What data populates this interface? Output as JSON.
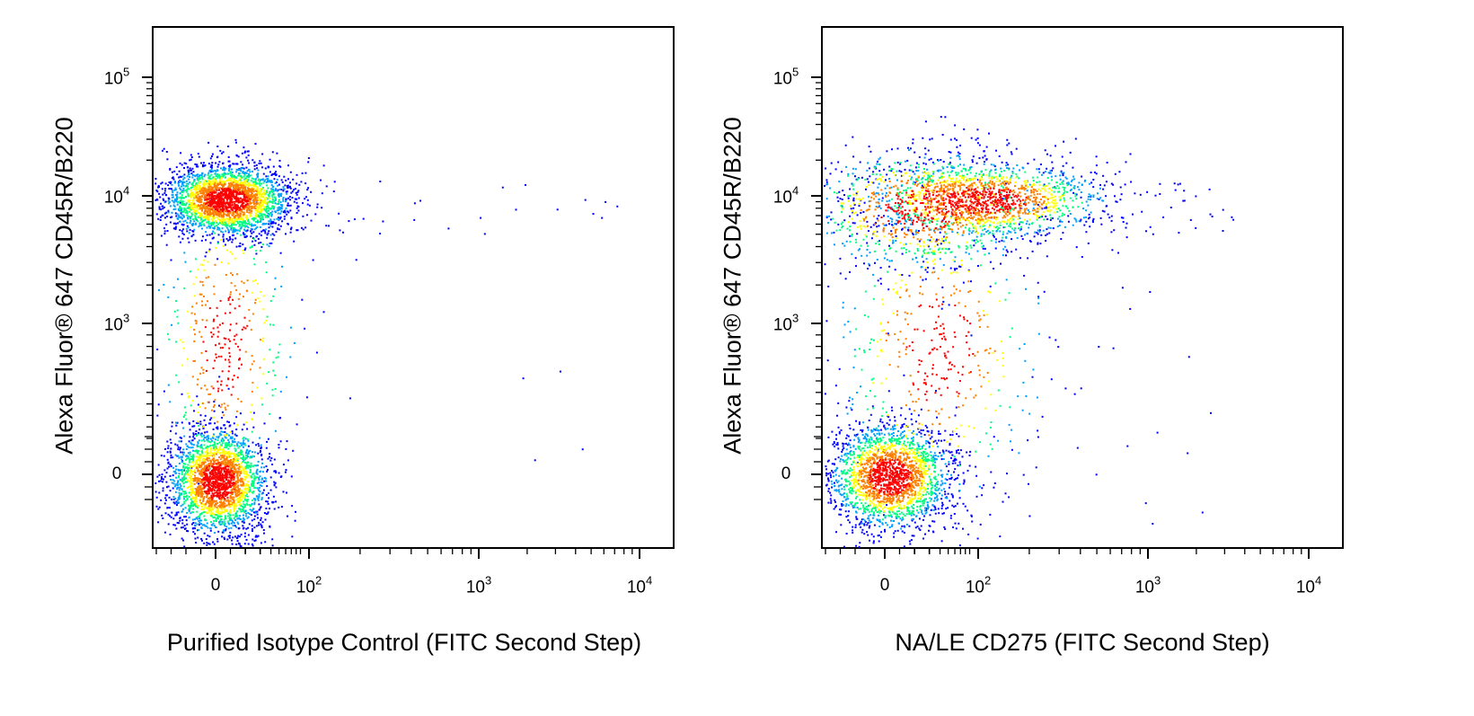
{
  "chart_data": [
    {
      "type": "scatter",
      "xlabel": "Purified Isotype Control (FITC Second Step)",
      "ylabel": "Alexa Fluor® 647 CD45R/B220",
      "x_scale": "biexponential",
      "y_scale": "biexponential",
      "x_ticks": [
        {
          "base": "0",
          "exp": ""
        },
        {
          "base": "10",
          "exp": "2"
        },
        {
          "base": "10",
          "exp": "3"
        },
        {
          "base": "10",
          "exp": "4"
        }
      ],
      "y_ticks": [
        {
          "base": "0",
          "exp": ""
        },
        {
          "base": "10",
          "exp": "3"
        },
        {
          "base": "10",
          "exp": "4"
        },
        {
          "base": "10",
          "exp": "5"
        }
      ],
      "coloring": "density (blue → green → yellow → red)",
      "populations": [
        {
          "x_center": 0,
          "y_center": 9000,
          "note": "B220+ cluster, FITC negative"
        },
        {
          "x_center": 0,
          "y_center": 0,
          "note": "B220- cluster, FITC negative"
        }
      ]
    },
    {
      "type": "scatter",
      "xlabel": "NA/LE CD275 (FITC Second Step)",
      "ylabel": "Alexa Fluor® 647 CD45R/B220",
      "x_scale": "biexponential",
      "y_scale": "biexponential",
      "x_ticks": [
        {
          "base": "0",
          "exp": ""
        },
        {
          "base": "10",
          "exp": "2"
        },
        {
          "base": "10",
          "exp": "3"
        },
        {
          "base": "10",
          "exp": "4"
        }
      ],
      "y_ticks": [
        {
          "base": "0",
          "exp": ""
        },
        {
          "base": "10",
          "exp": "3"
        },
        {
          "base": "10",
          "exp": "4"
        },
        {
          "base": "10",
          "exp": "5"
        }
      ],
      "coloring": "density (blue → green → yellow → red)",
      "populations": [
        {
          "x_center": 100,
          "y_center": 9000,
          "note": "B220+ cluster shifted positive for CD275"
        },
        {
          "x_center": 0,
          "y_center": 0,
          "note": "B220- cluster, FITC negative"
        }
      ]
    }
  ],
  "colors": {
    "low_density": "#0000ff",
    "mid_low": "#00a0ff",
    "mid": "#00ff80",
    "mid_high": "#ffff00",
    "high_density": "#ff0000"
  }
}
